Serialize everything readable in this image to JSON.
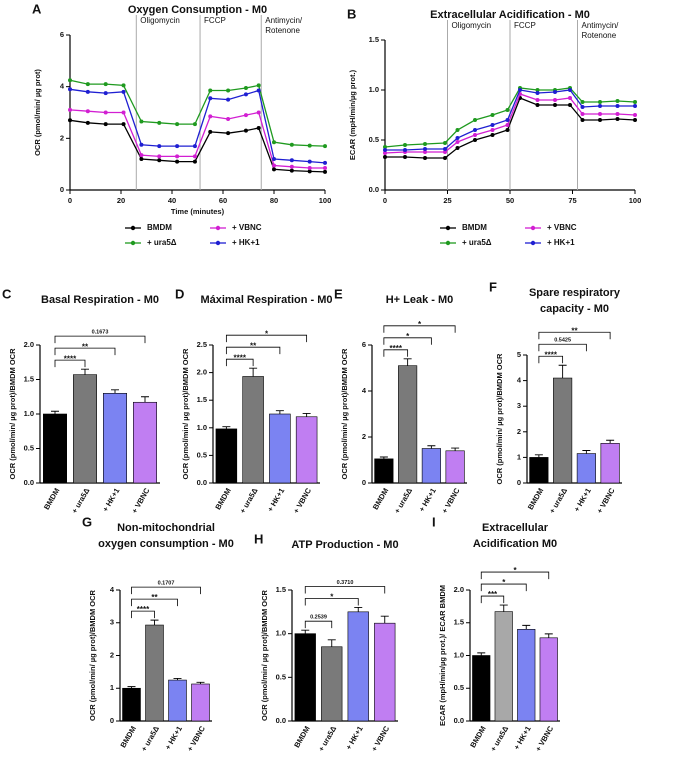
{
  "chart_data": [
    {
      "type": "line",
      "panel": "A",
      "title": "Oxygen Consumption - M0",
      "x_label": "Time (minutes)",
      "y_label": "OCR (pmol/min/ µg prot)",
      "x": [
        0,
        7,
        14,
        21,
        28,
        35,
        42,
        49,
        55,
        62,
        69,
        74,
        80,
        87,
        94,
        100
      ],
      "xlim": [
        0,
        100
      ],
      "xticks": [
        0,
        20,
        40,
        60,
        80,
        100
      ],
      "ylim": [
        0,
        6
      ],
      "yticks": [
        0,
        2,
        4,
        6
      ],
      "annotations": [
        {
          "x": 26,
          "text": "Oligomycin"
        },
        {
          "x": 51,
          "text": "FCCP"
        },
        {
          "x": 75,
          "text": [
            "Antimycin/",
            "Rotenone"
          ]
        }
      ],
      "series": [
        {
          "name": "BMDM",
          "color": "#000000",
          "values": [
            2.7,
            2.6,
            2.55,
            2.55,
            1.2,
            1.15,
            1.1,
            1.1,
            2.25,
            2.2,
            2.3,
            2.4,
            0.8,
            0.75,
            0.72,
            0.7
          ]
        },
        {
          "name": "+ ura5Δ",
          "color": "#1f9a1f",
          "values": [
            4.25,
            4.1,
            4.1,
            4.05,
            2.65,
            2.6,
            2.55,
            2.55,
            3.85,
            3.85,
            3.95,
            4.05,
            1.85,
            1.75,
            1.72,
            1.7
          ]
        },
        {
          "name": "+ VBNC",
          "color": "#d21fd2",
          "values": [
            3.1,
            3.05,
            3.0,
            3.0,
            1.35,
            1.3,
            1.3,
            1.3,
            2.85,
            2.75,
            2.9,
            3.0,
            0.95,
            0.9,
            0.85,
            0.85
          ]
        },
        {
          "name": "+ HK+1",
          "color": "#1f1fd2",
          "values": [
            3.9,
            3.8,
            3.75,
            3.8,
            1.75,
            1.7,
            1.7,
            1.7,
            3.55,
            3.5,
            3.7,
            3.85,
            1.2,
            1.15,
            1.1,
            1.05
          ]
        }
      ]
    },
    {
      "type": "line",
      "panel": "B",
      "title": "Extracellular Acidification - M0",
      "y_label": "ECAR (mpH/min/µg prot.)",
      "x": [
        0,
        8,
        16,
        24,
        29,
        36,
        43,
        49,
        54,
        61,
        68,
        74,
        79,
        86,
        93,
        100
      ],
      "xlim": [
        0,
        100
      ],
      "xticks": [
        0,
        25,
        50,
        75,
        100
      ],
      "ylim": [
        0,
        1.5
      ],
      "yticks": [
        {
          "value": 0,
          "label": "0.0"
        },
        0.5,
        {
          "value": 1,
          "label": "1.0"
        },
        1.5
      ],
      "annotations": [
        {
          "x": 25,
          "text": "Oligomycin"
        },
        {
          "x": 50,
          "text": "FCCP"
        },
        {
          "x": 77,
          "text": [
            "Antimycin/",
            "Rotenone"
          ]
        }
      ],
      "series": [
        {
          "name": "BMDM",
          "color": "#000000",
          "values": [
            0.33,
            0.33,
            0.32,
            0.32,
            0.42,
            0.5,
            0.55,
            0.6,
            0.92,
            0.85,
            0.85,
            0.85,
            0.7,
            0.7,
            0.71,
            0.7
          ]
        },
        {
          "name": "+ ura5Δ",
          "color": "#1f9a1f",
          "values": [
            0.43,
            0.45,
            0.46,
            0.47,
            0.6,
            0.7,
            0.75,
            0.8,
            1.02,
            1.0,
            1.0,
            1.02,
            0.88,
            0.88,
            0.89,
            0.88
          ]
        },
        {
          "name": "+ VBNC",
          "color": "#d21fd2",
          "values": [
            0.37,
            0.38,
            0.38,
            0.38,
            0.48,
            0.55,
            0.6,
            0.65,
            0.96,
            0.9,
            0.9,
            0.92,
            0.76,
            0.76,
            0.76,
            0.75
          ]
        },
        {
          "name": "+ HK+1",
          "color": "#1f1fd2",
          "values": [
            0.4,
            0.4,
            0.41,
            0.41,
            0.52,
            0.6,
            0.65,
            0.7,
            1.0,
            0.97,
            0.98,
            1.0,
            0.83,
            0.84,
            0.84,
            0.84
          ]
        }
      ]
    },
    {
      "type": "bar",
      "panel": "C",
      "title": "Basal Respiration - M0",
      "y_label": "OCR (pmol/min/ µg prot)/BMDM OCR",
      "categories": [
        "BMDM",
        "+ ura5Δ",
        "+ HK+1",
        "+ VBNC"
      ],
      "colors": [
        "#000000",
        "#7a7a7a",
        "#7b83f2",
        "#c07ef2"
      ],
      "values": [
        1.0,
        1.57,
        1.3,
        1.17
      ],
      "errors": [
        0.04,
        0.08,
        0.05,
        0.08
      ],
      "significance": [
        "****",
        "**",
        "0.1673"
      ],
      "ylim": [
        0,
        2
      ],
      "yticks": [
        {
          "value": 0,
          "label": "0.0"
        },
        0.5,
        {
          "value": 1,
          "label": "1.0"
        },
        1.5,
        {
          "value": 2,
          "label": "2.0"
        }
      ]
    },
    {
      "type": "bar",
      "panel": "D",
      "title": "Máximal Respiration - M0",
      "y_label": "OCR (pmol/min/ µg prot)/BMDM OCR",
      "categories": [
        "BMDM",
        "+ ura5Δ",
        "+ HK+1",
        "+ VBNC"
      ],
      "colors": [
        "#000000",
        "#7a7a7a",
        "#7b83f2",
        "#c07ef2"
      ],
      "values": [
        0.98,
        1.93,
        1.25,
        1.2
      ],
      "errors": [
        0.04,
        0.15,
        0.06,
        0.06
      ],
      "significance": [
        "****",
        "**",
        "*"
      ],
      "ylim": [
        0,
        2.5
      ],
      "yticks": [
        {
          "value": 0,
          "label": "0.0"
        },
        0.5,
        {
          "value": 1,
          "label": "1.0"
        },
        1.5,
        {
          "value": 2,
          "label": "2.0"
        },
        2.5
      ]
    },
    {
      "type": "bar",
      "panel": "E",
      "title": "H+ Leak - M0",
      "y_label": "OCR (pmol/min/ µg prot)/BMDM OCR",
      "categories": [
        "BMDM",
        "+ ura5Δ",
        "+ HK+1",
        "+ VBNC"
      ],
      "colors": [
        "#000000",
        "#7a7a7a",
        "#7b83f2",
        "#c07ef2"
      ],
      "values": [
        1.05,
        5.1,
        1.5,
        1.4
      ],
      "errors": [
        0.08,
        0.3,
        0.12,
        0.12
      ],
      "significance": [
        "****",
        "*",
        "*"
      ],
      "ylim": [
        0,
        6
      ],
      "yticks": [
        0,
        2,
        4,
        6
      ]
    },
    {
      "type": "bar",
      "panel": "F",
      "title": [
        "Spare respiratory",
        "capacity - M0"
      ],
      "y_label": "OCR (pmol/min/ µg prot)/BMDM OCR",
      "categories": [
        "BMDM",
        "+ ura5Δ",
        "+ HK+1",
        "+ VBNC"
      ],
      "colors": [
        "#000000",
        "#7a7a7a",
        "#7b83f2",
        "#c07ef2"
      ],
      "values": [
        1.0,
        4.1,
        1.15,
        1.55
      ],
      "errors": [
        0.1,
        0.5,
        0.12,
        0.12
      ],
      "significance": [
        "****",
        "0.5425",
        "**"
      ],
      "ylim": [
        0,
        5
      ],
      "yticks": [
        0,
        1,
        2,
        3,
        4,
        5
      ]
    },
    {
      "type": "bar",
      "panel": "G",
      "title": [
        "Non-mitochondrial",
        "oxygen consumption - M0"
      ],
      "y_label": "OCR (pmol/min/ µg prot)/BMDM OCR",
      "categories": [
        "BMDM",
        "+ ura5Δ",
        "+ HK+1",
        "+ VBNC"
      ],
      "colors": [
        "#000000",
        "#7a7a7a",
        "#7b83f2",
        "#c07ef2"
      ],
      "values": [
        1.0,
        2.93,
        1.25,
        1.13
      ],
      "errors": [
        0.05,
        0.15,
        0.05,
        0.05
      ],
      "significance": [
        "****",
        "**",
        "0.1707"
      ],
      "ylim": [
        0,
        4
      ],
      "yticks": [
        0,
        1,
        2,
        3,
        4
      ]
    },
    {
      "type": "bar",
      "panel": "H",
      "title": "ATP Production - M0",
      "y_label": "OCR (pmol/min/ µg prot)/BMDM OCR",
      "categories": [
        "BMDM",
        "+ ura5Δ",
        "+ HK+1",
        "+ VBNC"
      ],
      "colors": [
        "#000000",
        "#7a7a7a",
        "#7b83f2",
        "#c07ef2"
      ],
      "values": [
        1.0,
        0.85,
        1.25,
        1.12
      ],
      "errors": [
        0.04,
        0.08,
        0.05,
        0.08
      ],
      "significance": [
        "0.2539",
        "*",
        "0.3710"
      ],
      "ylim": [
        0,
        1.5
      ],
      "yticks": [
        {
          "value": 0,
          "label": "0.0"
        },
        0.5,
        {
          "value": 1,
          "label": "1.0"
        },
        1.5
      ]
    },
    {
      "type": "bar",
      "panel": "I",
      "title": [
        "Extracellular",
        "Acidification M0"
      ],
      "y_label": "ECAR (mpH/min/µg prot.)/ ECAR BMDM",
      "categories": [
        "BMDM",
        "+ ura5Δ",
        "+ HK+1",
        "+ VBNC"
      ],
      "colors": [
        "#000000",
        "#a8a8a8",
        "#7b83f2",
        "#c07ef2"
      ],
      "values": [
        1.0,
        1.67,
        1.4,
        1.27
      ],
      "errors": [
        0.04,
        0.1,
        0.06,
        0.06
      ],
      "significance": [
        "***",
        "*",
        "*"
      ],
      "ylim": [
        0,
        2
      ],
      "yticks": [
        {
          "value": 0,
          "label": "0.0"
        },
        0.5,
        {
          "value": 1,
          "label": "1.0"
        },
        1.5,
        {
          "value": 2,
          "label": "2.0"
        }
      ]
    }
  ]
}
